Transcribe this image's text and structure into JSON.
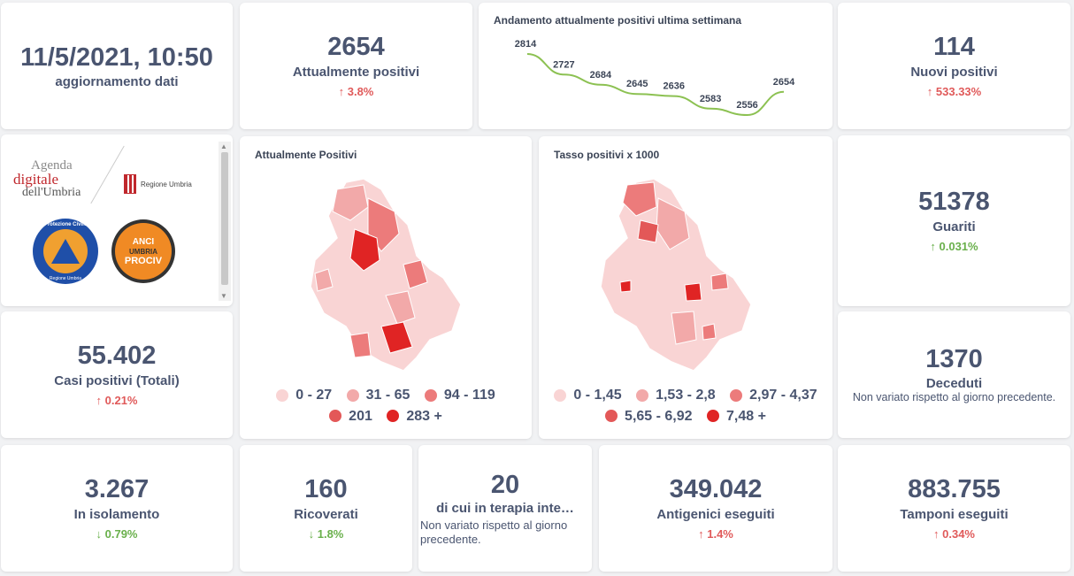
{
  "datetime": {
    "value": "11/5/2021, 10:50",
    "label": "aggiornamento dati"
  },
  "attualmente_positivi": {
    "value": "2654",
    "label": "Attualmente positivi",
    "change": "3.8%",
    "direction": "up"
  },
  "trend": {
    "title": "Andamento attualmente positivi ultima settimana",
    "point_labels": [
      "2814",
      "2727",
      "2684",
      "2645",
      "2636",
      "2583",
      "2556",
      "2654"
    ]
  },
  "nuovi_positivi": {
    "value": "114",
    "label": "Nuovi positivi",
    "change": "533.33%",
    "direction": "up"
  },
  "logos": {
    "agenda_line1": "Agenda",
    "agenda_line2": "digitale",
    "agenda_line3": "dell'Umbria",
    "regione": "Regione Umbria",
    "protezione": "Protezione Civile",
    "protezione_sub": "Regione Umbria",
    "anci_line1": "ANCI",
    "anci_line2": "UMBRIA",
    "anci_line3": "PROCIV"
  },
  "map_positivi": {
    "title": "Attualmente Positivi",
    "legend": [
      {
        "label": "0 - 27",
        "color": "#f9d4d4"
      },
      {
        "label": "31 - 65",
        "color": "#f2a9a9"
      },
      {
        "label": "94 - 119",
        "color": "#ec7b7b"
      },
      {
        "label": "201",
        "color": "#e35858"
      },
      {
        "label": "283 +",
        "color": "#e02424"
      }
    ]
  },
  "map_tasso": {
    "title": "Tasso positivi x 1000",
    "legend": [
      {
        "label": "0 - 1,45",
        "color": "#f9d4d4"
      },
      {
        "label": "1,53 - 2,8",
        "color": "#f2a9a9"
      },
      {
        "label": "2,97 - 4,37",
        "color": "#ec7b7b"
      },
      {
        "label": "5,65 - 6,92",
        "color": "#e35858"
      },
      {
        "label": "7,48 +",
        "color": "#e02424"
      }
    ]
  },
  "guariti": {
    "value": "51378",
    "label": "Guariti",
    "change": "0.031%",
    "direction": "up"
  },
  "casi_totali": {
    "value": "55.402",
    "label": "Casi positivi (Totali)",
    "change": "0.21%",
    "direction": "up"
  },
  "deceduti": {
    "value": "1370",
    "label": "Deceduti",
    "note": "Non variato rispetto al giorno precedente."
  },
  "isolamento": {
    "value": "3.267",
    "label": "In isolamento",
    "change": "0.79%",
    "direction": "down"
  },
  "ricoverati": {
    "value": "160",
    "label": "Ricoverati",
    "change": "1.8%",
    "direction": "down"
  },
  "terapia": {
    "value": "20",
    "label": "di cui in terapia inte…",
    "note": "Non variato rispetto al giorno precedente."
  },
  "antigenici": {
    "value": "349.042",
    "label": "Antigenici eseguiti",
    "change": "1.4%",
    "direction": "up"
  },
  "tamponi": {
    "value": "883.755",
    "label": "Tamponi eseguiti",
    "change": "0.34%",
    "direction": "up"
  },
  "colors": {
    "up": "#e05a5a",
    "down": "#6ab04c",
    "line": "#8cc152",
    "text": "#4a5570"
  }
}
